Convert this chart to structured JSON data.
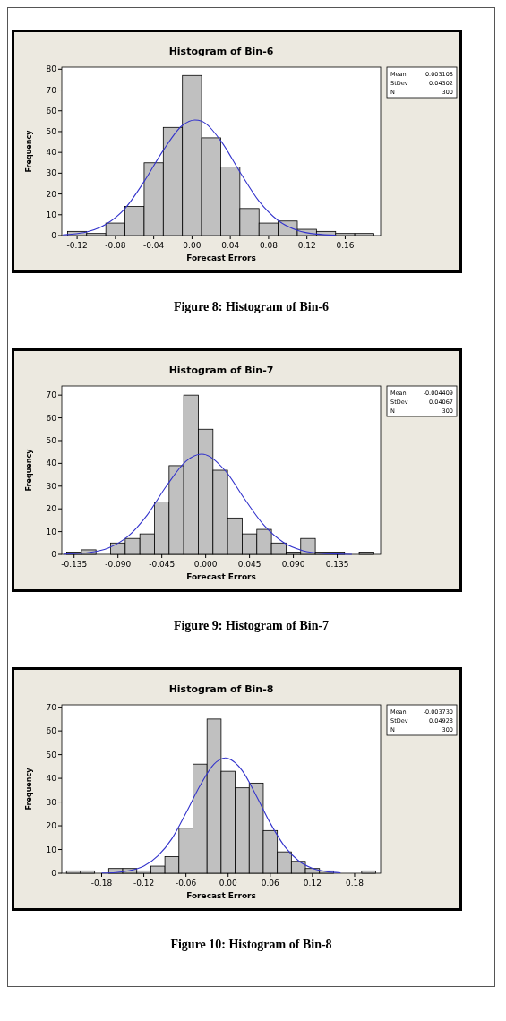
{
  "chart_data": [
    {
      "type": "histogram",
      "title": "Histogram of Bin-6",
      "xlabel": "Forecast Errors",
      "ylabel": "Frequency",
      "xlim": [
        -0.136,
        0.197
      ],
      "ylim": [
        0,
        81
      ],
      "xticks": [
        -0.12,
        -0.08,
        -0.04,
        {
          "value": 0,
          "label": "0.00"
        },
        0.04,
        0.08,
        0.12,
        0.16
      ],
      "yticks": [
        0,
        10,
        20,
        30,
        40,
        50,
        60,
        70,
        80
      ],
      "grid": false,
      "series": [
        {
          "color": "#c0c0c0",
          "bins": [
            -0.13,
            -0.11,
            -0.09,
            -0.07,
            -0.05,
            -0.03,
            -0.01,
            0.01,
            0.03,
            0.05,
            0.07,
            0.09,
            0.11,
            0.13,
            0.15,
            0.17,
            0.19
          ],
          "values": [
            2,
            1,
            6,
            14,
            35,
            52,
            77,
            47,
            33,
            13,
            6,
            7,
            3,
            2,
            1,
            1
          ]
        },
        {
          "type": "line",
          "color": "#3333cc",
          "x": [
            -0.135,
            -0.13,
            -0.11,
            -0.09,
            -0.07,
            -0.05,
            -0.03,
            -0.01,
            0.003,
            0.01,
            0.03,
            0.05,
            0.07,
            0.09,
            0.11,
            0.13,
            0.15
          ],
          "values": [
            0.3,
            0.5,
            1.7,
            5.4,
            13,
            26,
            41,
            53,
            55.6,
            55,
            45.6,
            30.6,
            16.5,
            7.2,
            2.5,
            0.7,
            0.2
          ]
        }
      ],
      "annotations": [
        "Mean",
        "0.003108",
        "StDev",
        "0.04302",
        "N",
        "300",
        "Figure 8: Histogram of Bin-6"
      ]
    },
    {
      "type": "histogram",
      "title": "Histogram of Bin-7",
      "xlabel": "Forecast Errors",
      "ylabel": "Frequency",
      "xlim": [
        -0.1476,
        0.1795
      ],
      "ylim": [
        0,
        74
      ],
      "xticks": [
        -0.135,
        {
          "value": -0.09,
          "label": "-0.090"
        },
        -0.045,
        {
          "value": 0,
          "label": "0.000"
        },
        0.045,
        {
          "value": 0.09,
          "label": "0.090"
        },
        0.135
      ],
      "yticks": [
        0,
        10,
        20,
        30,
        40,
        50,
        60,
        70
      ],
      "grid": false,
      "series": [
        {
          "color": "#c0c0c0",
          "bins": [
            -0.1425,
            -0.1275,
            -0.1125,
            -0.0975,
            -0.0825,
            -0.0675,
            -0.0525,
            -0.0375,
            -0.0225,
            -0.0075,
            0.0075,
            0.0225,
            0.0375,
            0.0525,
            0.0675,
            0.0825,
            0.0975,
            0.1125,
            0.1275,
            0.1425,
            0.1575,
            0.1725
          ],
          "values": [
            1,
            2,
            0,
            5,
            7,
            9,
            23,
            39,
            70,
            55,
            37,
            16,
            9,
            11,
            5,
            1,
            7,
            1,
            1,
            0,
            1
          ]
        },
        {
          "type": "line",
          "color": "#3333cc",
          "x": [
            -0.145,
            -0.14,
            -0.12,
            -0.1,
            -0.08,
            -0.06,
            -0.04,
            -0.02,
            -0.004,
            0.02,
            0.04,
            0.06,
            0.08,
            0.1,
            0.12,
            0.14,
            0.15
          ],
          "values": [
            0.1,
            0.2,
            0.8,
            2.8,
            7.8,
            17.3,
            30.2,
            41,
            44.1,
            36.8,
            24.3,
            12.7,
            5.2,
            1.6,
            0.4,
            0.1,
            0
          ]
        }
      ],
      "annotations": [
        "Mean",
        "-0.004409",
        "StDev",
        "0.04067",
        "N",
        "300",
        "Figure 9: Histogram of Bin-7"
      ]
    },
    {
      "type": "histogram",
      "title": "Histogram of Bin-8",
      "xlabel": "Forecast Errors",
      "ylabel": "Frequency",
      "xlim": [
        -0.2367,
        0.217
      ],
      "ylim": [
        0,
        71
      ],
      "xticks": [
        -0.18,
        -0.12,
        -0.06,
        {
          "value": 0,
          "label": "0.00"
        },
        0.06,
        0.12,
        0.18
      ],
      "yticks": [
        0,
        10,
        20,
        30,
        40,
        50,
        60,
        70
      ],
      "grid": false,
      "series": [
        {
          "color": "#c0c0c0",
          "bins": [
            -0.23,
            -0.21,
            -0.19,
            -0.17,
            -0.15,
            -0.13,
            -0.11,
            -0.09,
            -0.07,
            -0.05,
            -0.03,
            -0.01,
            0.01,
            0.03,
            0.05,
            0.07,
            0.09,
            0.11,
            0.13,
            0.15,
            0.17,
            0.19,
            0.21
          ],
          "values": [
            1,
            1,
            0,
            2,
            2,
            1,
            3,
            7,
            19,
            46,
            65,
            43,
            36,
            38,
            18,
            9,
            5,
            2,
            1,
            0,
            0,
            1
          ]
        },
        {
          "type": "line",
          "color": "#3333cc",
          "x": [
            -0.18,
            -0.16,
            -0.14,
            -0.12,
            -0.1,
            -0.08,
            -0.06,
            -0.04,
            -0.02,
            -0.004,
            0.02,
            0.04,
            0.06,
            0.08,
            0.1,
            0.12,
            0.14,
            0.16
          ],
          "values": [
            0.1,
            0.3,
            1.1,
            3,
            7.3,
            14.6,
            25.4,
            36.9,
            46,
            48.6,
            43.3,
            32.7,
            21.1,
            11.5,
            5.3,
            2.1,
            0.7,
            0.2
          ]
        }
      ],
      "annotations": [
        "Mean",
        "-0.003730",
        "StDev",
        "0.04928",
        "N",
        "300",
        "Figure 10: Histogram of Bin-8"
      ]
    }
  ]
}
